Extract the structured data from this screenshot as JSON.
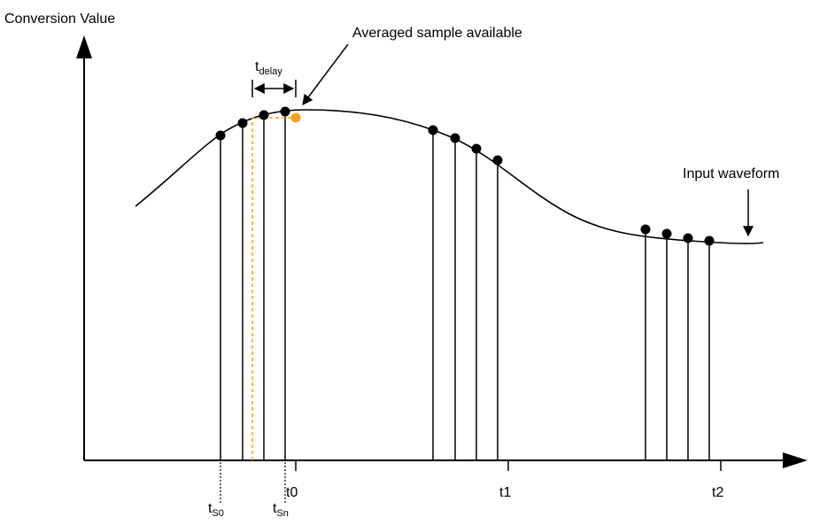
{
  "diagram": {
    "y_axis_label": "Conversion Value",
    "annotation_averaged": "Averaged sample available",
    "annotation_input": "Input waveform",
    "delay_label": {
      "main": "t",
      "sub": "delay"
    },
    "tick_labels": [
      "t0",
      "t1",
      "t2"
    ],
    "sample_start_label": {
      "main": "t",
      "sub": "S0"
    },
    "sample_end_label": {
      "main": "t",
      "sub": "Sn"
    },
    "colors": {
      "line": "#000000",
      "sample_dot": "#000000",
      "averaged_dot": "#F7A11A",
      "averaged_guide": "#F7A11A",
      "background": "#FFFFFF"
    }
  }
}
